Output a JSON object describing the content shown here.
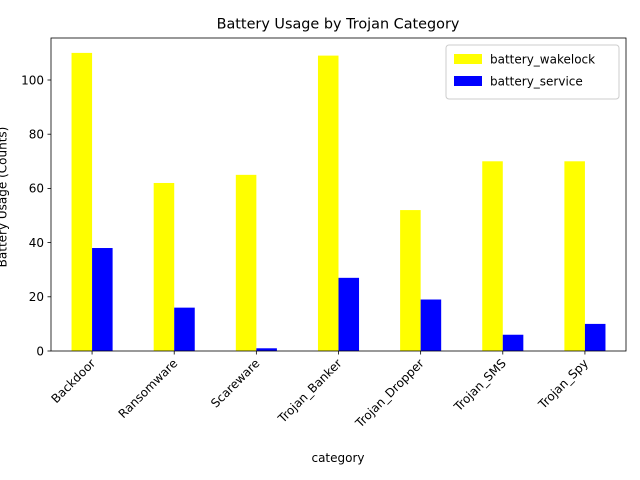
{
  "chart_data": {
    "type": "bar",
    "title": "Battery Usage by Trojan Category",
    "xlabel": "category",
    "ylabel": "Battery Usage (Counts)",
    "categories": [
      "Backdoor",
      "Ransomware",
      "Scareware",
      "Trojan_Banker",
      "Trojan_Dropper",
      "Trojan_SMS",
      "Trojan_Spy"
    ],
    "series": [
      {
        "name": "battery_wakelock",
        "color": "#ffff00",
        "values": [
          110,
          62,
          65,
          109,
          52,
          70,
          70
        ]
      },
      {
        "name": "battery_service",
        "color": "#0000ff",
        "values": [
          38,
          16,
          1,
          27,
          19,
          6,
          10
        ]
      }
    ],
    "ylim": [
      0,
      115.5
    ],
    "yticks": [
      0,
      20,
      40,
      60,
      80,
      100
    ],
    "grid": false,
    "legend_position": "top-right"
  }
}
